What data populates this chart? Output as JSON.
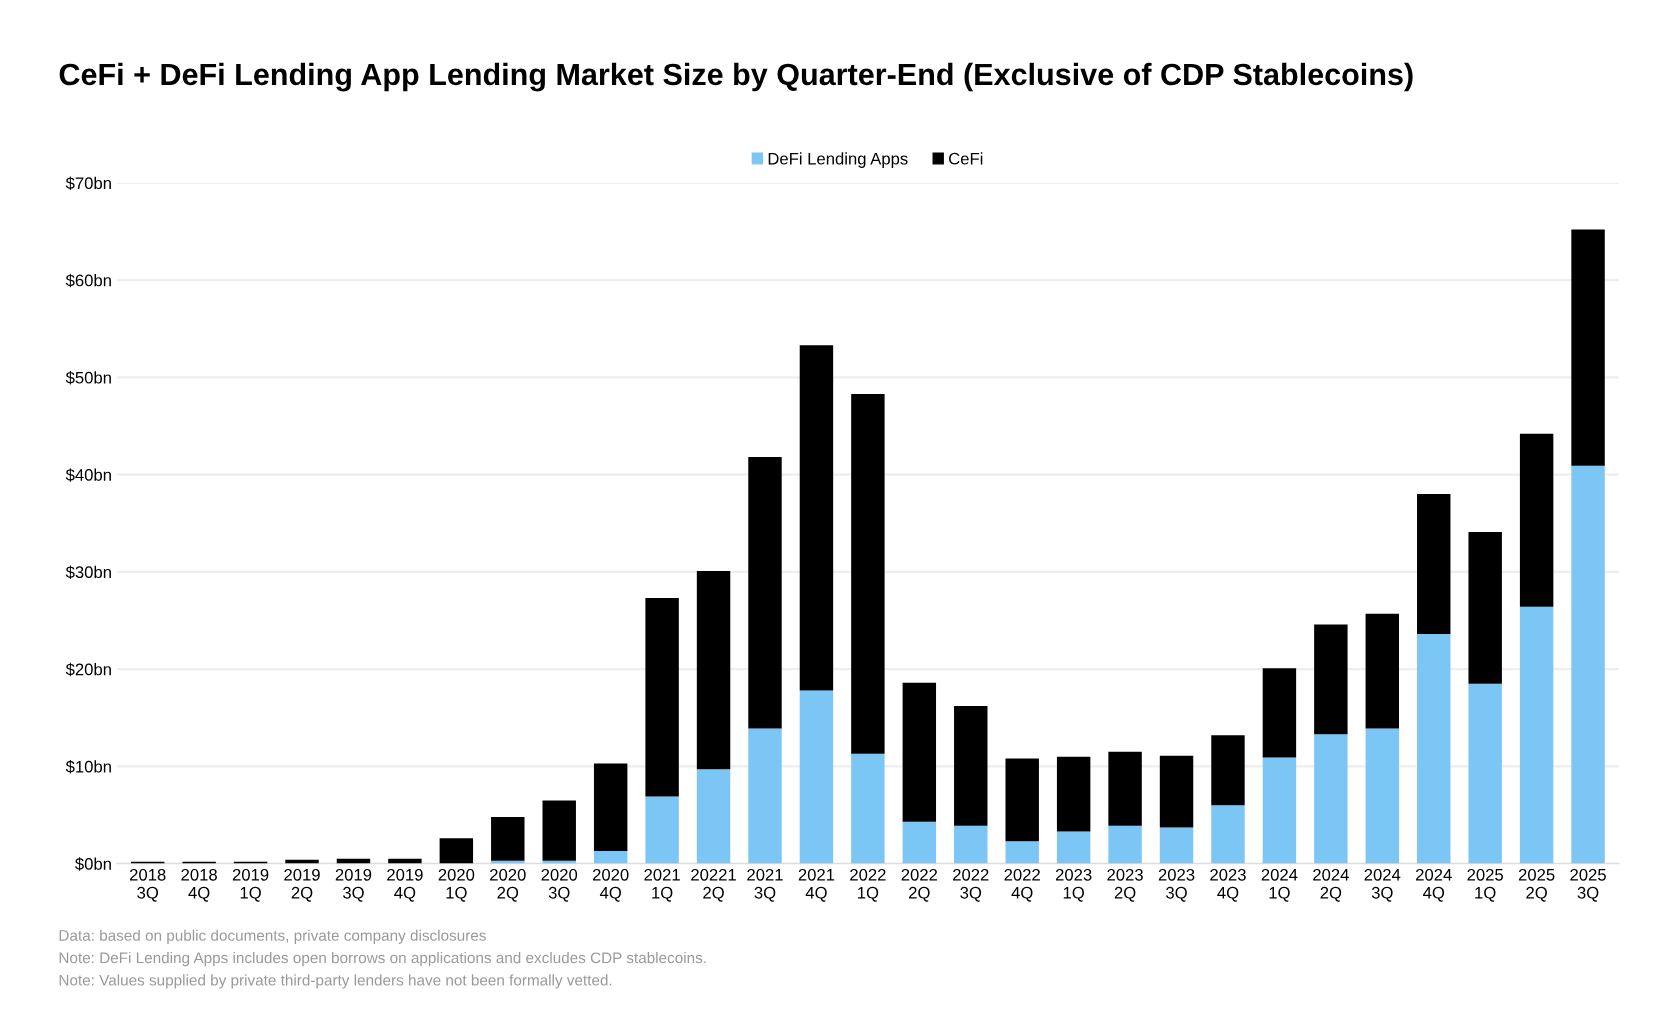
{
  "chart_data": {
    "type": "bar",
    "stacked": true,
    "title": "CeFi + DeFi Lending App Lending Market Size by Quarter-End (Exclusive of CDP Stablecoins)",
    "categories": [
      "2018\n3Q",
      "2018\n4Q",
      "2019\n1Q",
      "2019\n2Q",
      "2019\n3Q",
      "2019\n4Q",
      "2020\n1Q",
      "2020\n2Q",
      "2020\n3Q",
      "2020\n4Q",
      "2021\n1Q",
      "20221\n2Q",
      "2021\n3Q",
      "2021\n4Q",
      "2022\n1Q",
      "2022\n2Q",
      "2022\n3Q",
      "2022\n4Q",
      "2023\n1Q",
      "2023\n2Q",
      "2023\n3Q",
      "2023\n4Q",
      "2024\n1Q",
      "2024\n2Q",
      "2024\n3Q",
      "2024\n4Q",
      "2025\n1Q",
      "2025\n2Q",
      "2025\n3Q"
    ],
    "series": [
      {
        "name": "DeFi Lending Apps",
        "color": "#7cc6f5",
        "values": [
          0,
          0,
          0,
          0,
          0,
          0,
          0,
          0.3,
          0.3,
          1.3,
          6.9,
          9.7,
          13.9,
          17.8,
          11.3,
          4.3,
          3.9,
          2.3,
          3.3,
          3.9,
          3.7,
          6.0,
          10.9,
          13.3,
          13.9,
          23.6,
          18.5,
          26.4,
          40.9
        ]
      },
      {
        "name": "CeFi",
        "color": "#000000",
        "values": [
          0.2,
          0.2,
          0.2,
          0.4,
          0.5,
          0.5,
          2.6,
          4.5,
          6.2,
          9.0,
          20.4,
          20.4,
          27.9,
          35.5,
          37.0,
          14.3,
          12.3,
          8.5,
          7.7,
          7.6,
          7.4,
          7.2,
          9.2,
          11.3,
          11.8,
          14.4,
          15.6,
          17.8,
          24.3
        ]
      }
    ],
    "ylim": [
      0,
      70
    ],
    "yticks": [
      {
        "value": 0,
        "label": "$0bn"
      },
      {
        "value": 10,
        "label": "$10bn"
      },
      {
        "value": 20,
        "label": "$20bn"
      },
      {
        "value": 30,
        "label": "$30bn"
      },
      {
        "value": 40,
        "label": "$40bn"
      },
      {
        "value": 50,
        "label": "$50bn"
      },
      {
        "value": 60,
        "label": "$60bn"
      },
      {
        "value": 70,
        "label": "$70bn"
      }
    ],
    "grid": "y",
    "legend": "top",
    "annotations": [
      "Data: based on public documents, private company disclosures",
      "Note: DeFi Lending Apps includes open borrows on applications and excludes CDP stablecoins.",
      "Note: Values supplied by private third-party lenders have not been formally vetted."
    ]
  }
}
